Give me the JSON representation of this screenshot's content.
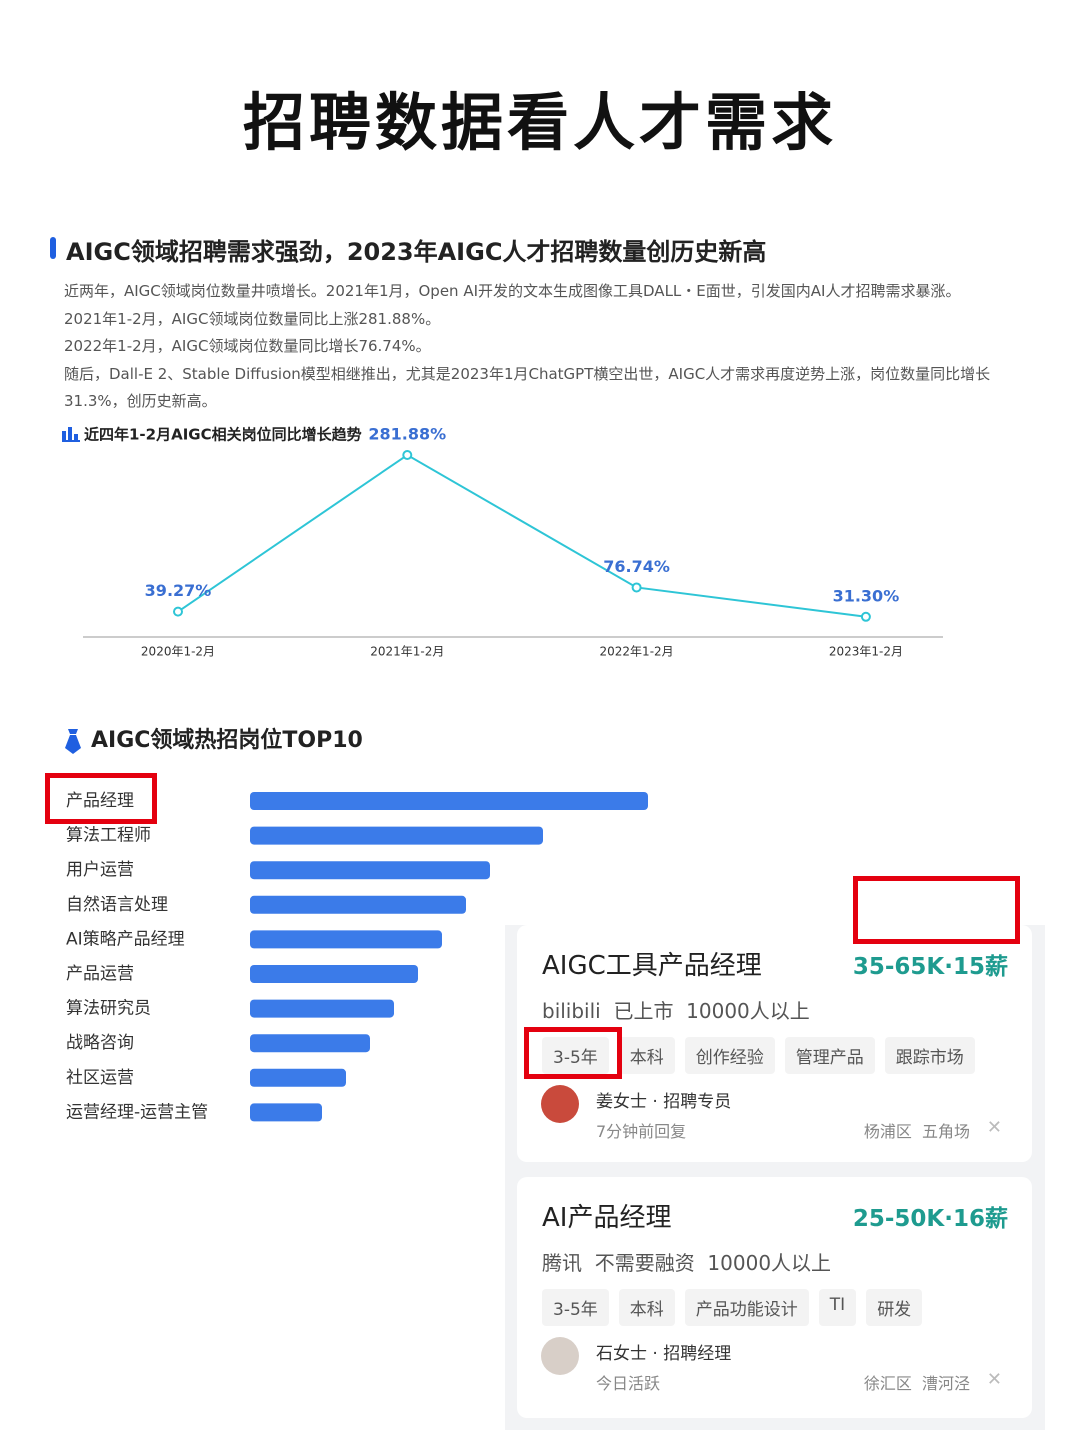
{
  "header": {
    "title": "招聘数据看人才需求"
  },
  "intro": {
    "heading": "AIGC领域招聘需求强劲，2023年AIGC人才招聘数量创历史新高",
    "paragraphs": [
      "近两年，AIGC领域岗位数量井喷增长。2021年1月，Open AI开发的文本生成图像工具DALL・E面世，引发国内AI人才招聘需求暴涨。",
      "2021年1-2月，AIGC领域岗位数量同比上涨281.88%。",
      "2022年1-2月，AIGC领域岗位数量同比增长76.74%。",
      "随后，Dall-E 2、Stable Diffusion模型相继推出，尤其是2023年1月ChatGPT横空出世，AIGC人才需求再度逆势上涨，岗位数量同比增长31.3%，创历史新高。"
    ]
  },
  "chart_data": [
    {
      "type": "line",
      "title": "近四年1-2月AIGC相关岗位同比增长趋势",
      "categories": [
        "2020年1-2月",
        "2021年1-2月",
        "2022年1-2月",
        "2023年1-2月"
      ],
      "values": [
        39.27,
        281.88,
        76.74,
        31.3
      ],
      "value_labels": [
        "39.27%",
        "281.88%",
        "76.74%",
        "31.30%"
      ],
      "color": "#2ec5d6",
      "label_color": "#3a6fd2"
    },
    {
      "type": "bar",
      "title": "AIGC领域热招岗位TOP10",
      "orientation": "horizontal",
      "categories": [
        "产品经理",
        "算法工程师",
        "用户运营",
        "自然语言处理",
        "AI策略产品经理",
        "产品运营",
        "算法研究员",
        "战略咨询",
        "社区运营",
        "运营经理-运营主管"
      ],
      "values": [
        398,
        293,
        240,
        216,
        192,
        168,
        144,
        120,
        96,
        72
      ],
      "color": "#3b7be9"
    }
  ],
  "jobs": {
    "cards": [
      {
        "title": "AIGC工具产品经理",
        "salary": "35-65K·15薪",
        "company": "bilibili  已上市  10000人以上",
        "tags": [
          "3-5年",
          "本科",
          "创作经验",
          "管理产品",
          "跟踪市场"
        ],
        "recruiter": "姜女士 · 招聘专员",
        "activity": "7分钟前回复",
        "location": "杨浦区  五角场"
      },
      {
        "title": "AI产品经理",
        "salary": "25-50K·16薪",
        "company": "腾讯  不需要融资  10000人以上",
        "tags": [
          "3-5年",
          "本科",
          "产品功能设计",
          "TI",
          "研发"
        ],
        "recruiter": "石女士 · 招聘经理",
        "activity": "今日活跃",
        "location": "徐汇区  漕河泾"
      }
    ]
  }
}
